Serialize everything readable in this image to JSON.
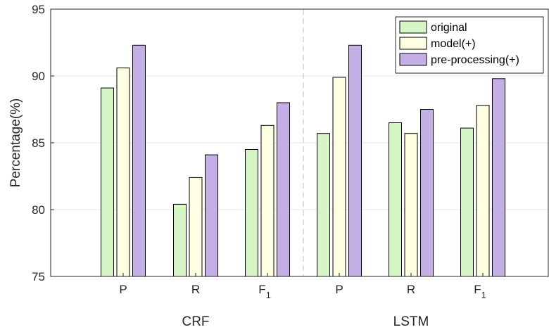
{
  "chart_data": {
    "type": "bar",
    "ylabel": "Percentage(%)",
    "ylim": [
      75,
      95
    ],
    "yticks": [
      75,
      80,
      85,
      90,
      95
    ],
    "grid": "horizontal",
    "legend_position": "top-right",
    "groups": [
      {
        "label": "CRF",
        "categories": [
          "P",
          "R",
          "F1"
        ]
      },
      {
        "label": "LSTM",
        "categories": [
          "P",
          "R",
          "F1"
        ]
      }
    ],
    "categories": [
      "P",
      "R",
      "F1",
      "P",
      "R",
      "F1"
    ],
    "series": [
      {
        "name": "original",
        "color": "#d6f5c4",
        "values": [
          89.1,
          80.4,
          84.5,
          85.7,
          86.5,
          86.1
        ]
      },
      {
        "name": "model(+)",
        "color": "#fefee0",
        "values": [
          90.6,
          82.4,
          86.3,
          89.9,
          85.7,
          87.8
        ]
      },
      {
        "name": "pre-processing(+)",
        "color": "#c3afe5",
        "values": [
          92.3,
          84.1,
          88.0,
          92.3,
          87.5,
          89.8
        ]
      }
    ]
  }
}
